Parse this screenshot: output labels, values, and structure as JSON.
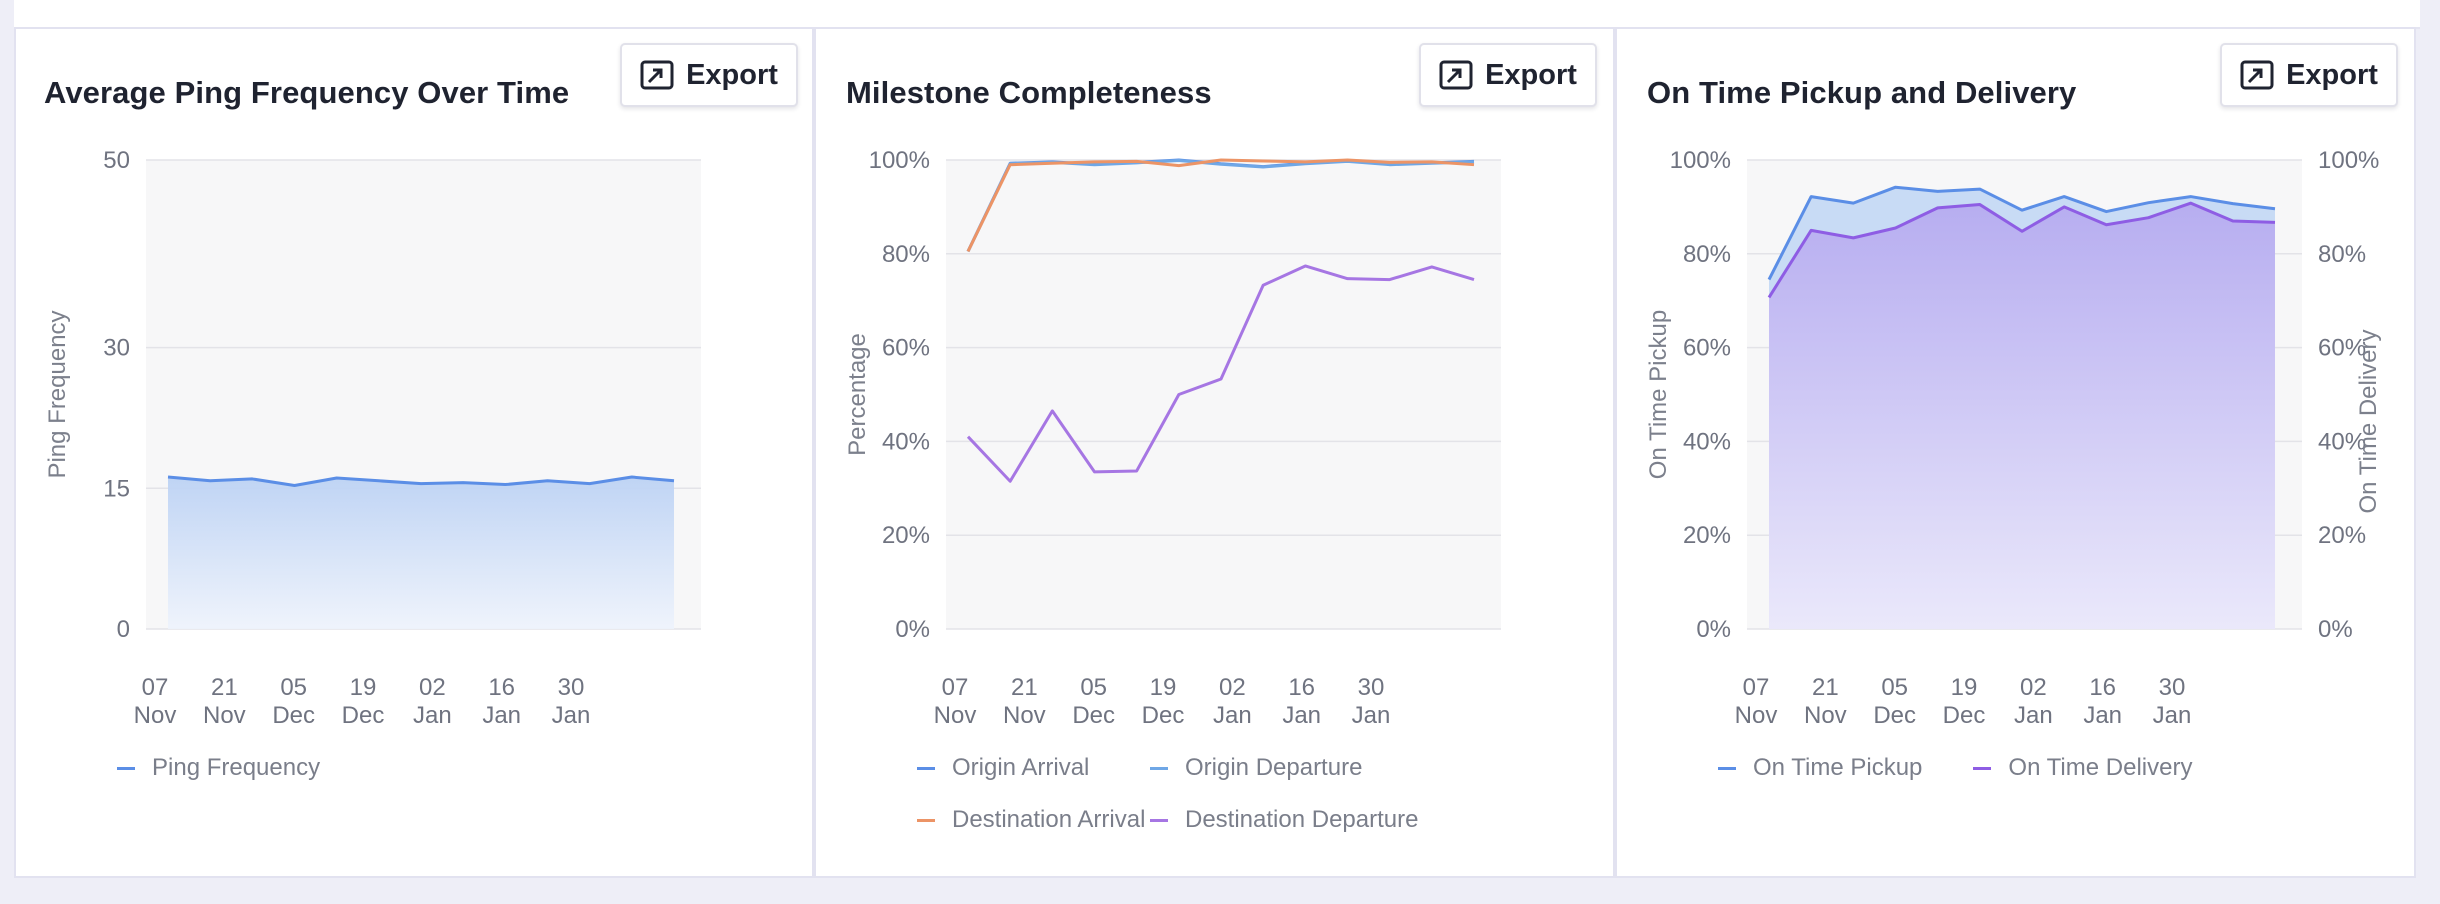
{
  "export_label": "Export",
  "chart_data": [
    {
      "type": "area",
      "title": "Average Ping Frequency Over Time",
      "ylabel": "Ping Frequency",
      "ylim": [
        0,
        50
      ],
      "yticks": [
        "0",
        "15",
        "30",
        "50"
      ],
      "ytick_values": [
        0,
        15,
        30,
        50
      ],
      "x_ticks": [
        [
          "07",
          "Nov"
        ],
        [
          "21",
          "Nov"
        ],
        [
          "05",
          "Dec"
        ],
        [
          "19",
          "Dec"
        ],
        [
          "02",
          "Jan"
        ],
        [
          "16",
          "Jan"
        ],
        [
          "30",
          "Jan"
        ]
      ],
      "grid": true,
      "series": [
        {
          "name": "Ping Frequency",
          "color": "#5b8ee6",
          "values": [
            16.2,
            15.8,
            16.0,
            15.3,
            16.1,
            15.8,
            15.5,
            15.6,
            15.4,
            15.8,
            15.5,
            16.2,
            15.8
          ]
        }
      ],
      "legend": {
        "position": "bottom-left"
      }
    },
    {
      "type": "line",
      "title": "Milestone Completeness",
      "ylabel": "Percentage",
      "ylim": [
        0,
        100
      ],
      "yticks": [
        "0%",
        "20%",
        "40%",
        "60%",
        "80%",
        "100%"
      ],
      "ytick_values": [
        0,
        20,
        40,
        60,
        80,
        100
      ],
      "x_ticks": [
        [
          "07",
          "Nov"
        ],
        [
          "21",
          "Nov"
        ],
        [
          "05",
          "Dec"
        ],
        [
          "19",
          "Dec"
        ],
        [
          "02",
          "Jan"
        ],
        [
          "16",
          "Jan"
        ],
        [
          "30",
          "Jan"
        ]
      ],
      "grid": true,
      "series": [
        {
          "name": "Origin Arrival",
          "color": "#5b8ee6",
          "values": [
            80.5,
            99.3,
            99.6,
            99.1,
            99.5,
            100,
            99.2,
            98.6,
            99.3,
            99.8,
            99.1,
            99.4,
            99.7
          ]
        },
        {
          "name": "Origin Departure",
          "color": "#6fa7e6",
          "values": [
            80.5,
            99.2,
            99.5,
            99.0,
            99.4,
            99.9,
            99.1,
            98.5,
            99.2,
            99.7,
            99.0,
            99.3,
            99.6
          ]
        },
        {
          "name": "Destination Arrival",
          "color": "#ec9466",
          "values": [
            80.5,
            99.0,
            99.3,
            99.6,
            99.7,
            98.8,
            100,
            99.8,
            99.6,
            100,
            99.5,
            99.6,
            99.0
          ]
        },
        {
          "name": "Destination Departure",
          "color": "#a676e3",
          "values": [
            41,
            31.5,
            46.5,
            33.5,
            33.7,
            50,
            53.3,
            73.3,
            77.4,
            74.7,
            74.5,
            77.2,
            74.5
          ]
        }
      ],
      "legend": {
        "position": "bottom"
      }
    },
    {
      "type": "area",
      "title": "On Time Pickup and Delivery",
      "ylabel": "On Time Pickup",
      "ylabel_right": "On Time Delivery",
      "ylim": [
        0,
        100
      ],
      "yticks": [
        "0%",
        "20%",
        "40%",
        "60%",
        "80%",
        "100%"
      ],
      "ytick_values": [
        0,
        20,
        40,
        60,
        80,
        100
      ],
      "x_ticks": [
        [
          "07",
          "Nov"
        ],
        [
          "21",
          "Nov"
        ],
        [
          "05",
          "Dec"
        ],
        [
          "19",
          "Dec"
        ],
        [
          "02",
          "Jan"
        ],
        [
          "16",
          "Jan"
        ],
        [
          "30",
          "Jan"
        ]
      ],
      "grid": true,
      "series": [
        {
          "name": "On Time Pickup",
          "color": "#5b8ee6",
          "values": [
            74.5,
            92.2,
            90.8,
            94.2,
            93.3,
            93.8,
            89.3,
            92.2,
            89.0,
            90.9,
            92.2,
            90.7,
            89.6
          ]
        },
        {
          "name": "On Time Delivery",
          "color": "#8e5de4",
          "values": [
            70.7,
            85.0,
            83.4,
            85.5,
            89.8,
            90.5,
            84.8,
            90.0,
            86.2,
            87.7,
            90.8,
            87.0,
            86.7
          ]
        }
      ],
      "legend": {
        "position": "bottom-left"
      }
    }
  ]
}
